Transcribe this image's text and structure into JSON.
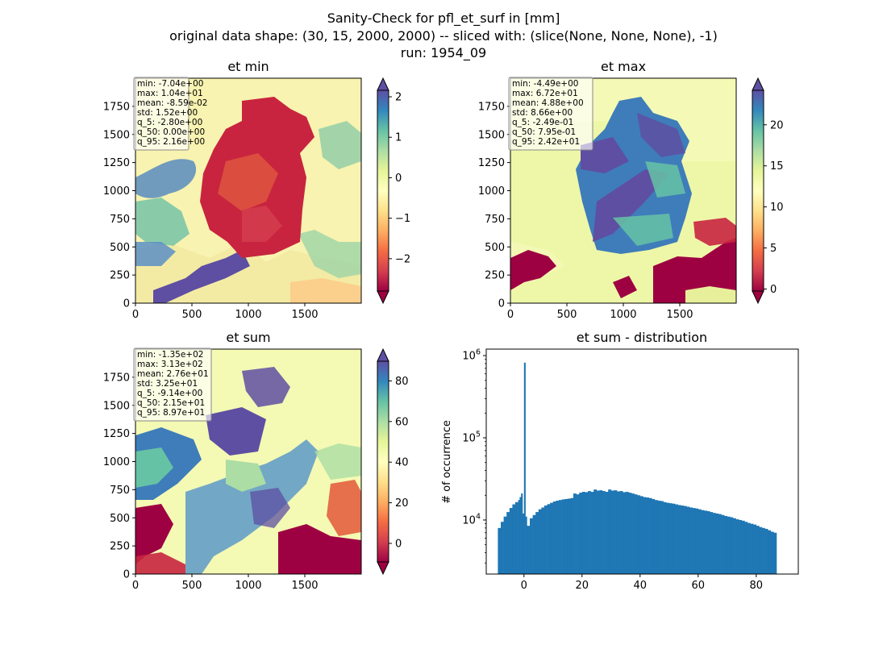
{
  "figure": {
    "suptitle_lines": [
      "Sanity-Check for pfl_et_surf in [mm]",
      "original data shape: (30, 15, 2000, 2000) -- sliced with: (slice(None, None, None), -1)",
      "run: 1954_09"
    ]
  },
  "chart_data": [
    {
      "type": "heatmap",
      "title": "et min",
      "colormap": "Spectral",
      "xlim": [
        0,
        2000
      ],
      "ylim": [
        0,
        2000
      ],
      "xticks": [
        0,
        500,
        1000,
        1500
      ],
      "yticks": [
        0,
        250,
        500,
        750,
        1000,
        1250,
        1500,
        1750
      ],
      "colorbar": {
        "vmin": -2.8,
        "vmax": 2.16,
        "ticks": [
          -2,
          -1,
          0,
          1,
          2
        ],
        "tick_labels": [
          "−2",
          "−1",
          "0",
          "1",
          "2"
        ],
        "extend": "both"
      },
      "stats": [
        "min: -7.04e+00",
        "max: 1.04e+01",
        "mean: -8.59e-02",
        "std: 1.52e+00",
        "q_5: -2.80e+00",
        "q_50: 0.00e+00",
        "q_95: 2.16e+00"
      ]
    },
    {
      "type": "heatmap",
      "title": "et max",
      "colormap": "Spectral",
      "xlim": [
        0,
        2000
      ],
      "ylim": [
        0,
        2000
      ],
      "xticks": [
        0,
        500,
        1000,
        1500
      ],
      "yticks": [
        0,
        250,
        500,
        750,
        1000,
        1250,
        1500,
        1750
      ],
      "colorbar": {
        "vmin": -0.249,
        "vmax": 24.2,
        "ticks": [
          0,
          5,
          10,
          15,
          20
        ],
        "tick_labels": [
          "0",
          "5",
          "10",
          "15",
          "20"
        ],
        "extend": "both"
      },
      "stats": [
        "min: -4.49e+00",
        "max: 6.72e+01",
        "mean: 4.88e+00",
        "std: 8.66e+00",
        "q_5: -2.49e-01",
        "q_50: 7.95e-01",
        "q_95: 2.42e+01"
      ]
    },
    {
      "type": "heatmap",
      "title": "et sum",
      "colormap": "Spectral",
      "xlim": [
        0,
        2000
      ],
      "ylim": [
        0,
        2000
      ],
      "xticks": [
        0,
        500,
        1000,
        1500
      ],
      "yticks": [
        0,
        250,
        500,
        750,
        1000,
        1250,
        1500,
        1750
      ],
      "colorbar": {
        "vmin": -9.14,
        "vmax": 89.7,
        "ticks": [
          0,
          20,
          40,
          60,
          80
        ],
        "tick_labels": [
          "0",
          "20",
          "40",
          "60",
          "80"
        ],
        "extend": "both"
      },
      "stats": [
        "min: -1.35e+02",
        "max: 3.13e+02",
        "mean: 2.76e+01",
        "std: 3.25e+01",
        "q_5: -9.14e+00",
        "q_50: 2.15e+01",
        "q_95: 8.97e+01"
      ]
    },
    {
      "type": "bar",
      "title": "et sum - distribution",
      "xlabel": "",
      "ylabel": "# of occurrence",
      "yscale": "log",
      "xlim": [
        -13,
        94.5
      ],
      "ylim": [
        2200,
        1200000
      ],
      "xticks": [
        0,
        20,
        40,
        60,
        80
      ],
      "yticks": [
        10000,
        100000,
        1000000
      ],
      "ytick_labels": [
        "10^4",
        "10^5",
        "10^6"
      ],
      "bar_color": "#1f77b4",
      "bin_width": 0.5,
      "bins_x": [
        -9.0,
        -8.0,
        -7.0,
        -6.0,
        -5.0,
        -4.0,
        -3.0,
        -2.0,
        -1.5,
        -1.0,
        -0.5,
        0.0,
        0.5,
        1.0,
        2.0,
        3.0,
        4.0,
        5.0,
        6.0,
        7.0,
        8.0,
        9.0,
        10.0,
        11.0,
        12.0,
        13.0,
        14.0,
        15.0,
        16.0,
        17.0,
        18.0,
        19.0,
        20.0,
        21.0,
        22.0,
        23.0,
        24.0,
        25.0,
        26.0,
        27.0,
        28.0,
        29.0,
        30.0,
        31.0,
        32.0,
        33.0,
        34.0,
        35.0,
        36.0,
        37.0,
        38.0,
        39.0,
        40.0,
        41.0,
        42.0,
        43.0,
        44.0,
        45.0,
        46.0,
        47.0,
        48.0,
        49.0,
        50.0,
        51.0,
        52.0,
        53.0,
        54.0,
        55.0,
        56.0,
        57.0,
        58.0,
        59.0,
        60.0,
        61.0,
        62.0,
        63.0,
        64.0,
        65.0,
        66.0,
        67.0,
        68.0,
        69.0,
        70.0,
        71.0,
        72.0,
        73.0,
        74.0,
        75.0,
        76.0,
        77.0,
        78.0,
        79.0,
        80.0,
        81.0,
        82.0,
        83.0,
        84.0,
        85.0,
        86.0,
        87.0,
        88.0,
        89.0
      ],
      "bins_count": [
        8000,
        9500,
        11000,
        12500,
        14000,
        15500,
        16500,
        17500,
        19000,
        21000,
        12000,
        820000,
        11000,
        8500,
        10500,
        11500,
        12500,
        13500,
        14200,
        15000,
        15600,
        16200,
        16800,
        17200,
        17500,
        17800,
        18000,
        18200,
        18500,
        21000,
        20500,
        21500,
        22000,
        21800,
        22500,
        22000,
        23500,
        22800,
        23000,
        22500,
        22000,
        23500,
        22800,
        23000,
        22300,
        22500,
        21800,
        22000,
        21500,
        21000,
        20500,
        20000,
        19500,
        19000,
        18800,
        18500,
        18000,
        17500,
        17200,
        17000,
        16500,
        16200,
        16000,
        15800,
        15500,
        15200,
        15000,
        14800,
        14500,
        14200,
        14000,
        13800,
        13500,
        13200,
        13000,
        12800,
        12500,
        12200,
        12000,
        11800,
        11500,
        11200,
        11000,
        10800,
        10500,
        10200,
        10000,
        9800,
        9500,
        9200,
        9000,
        8800,
        8500,
        8200,
        8000,
        7800,
        7500,
        7200,
        7000
      ]
    }
  ]
}
